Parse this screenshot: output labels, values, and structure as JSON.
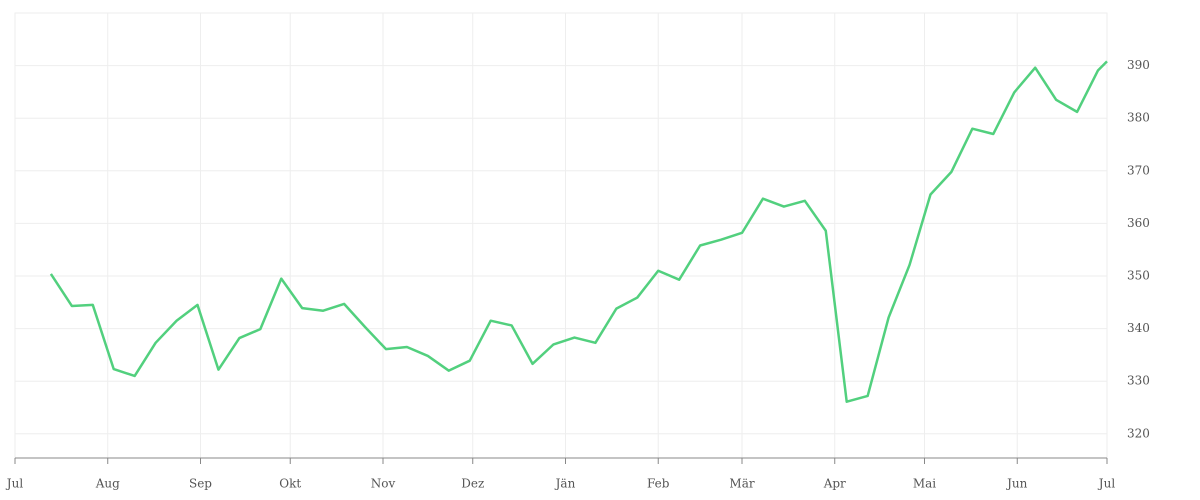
{
  "chart_data": {
    "type": "line",
    "x": [
      12,
      19,
      26,
      33,
      40,
      47,
      54,
      61,
      68,
      75,
      82,
      89,
      96,
      103,
      110,
      117,
      124,
      131,
      138,
      145,
      152,
      159,
      166,
      173,
      180,
      187,
      194,
      201,
      208,
      215,
      222,
      229,
      236,
      243,
      250,
      257,
      264,
      271,
      278,
      285,
      292,
      299,
      306,
      313,
      320,
      327,
      334,
      341,
      348,
      355,
      362,
      365
    ],
    "series": [
      {
        "color": "#52d07e",
        "values": [
          350.4,
          344.3,
          344.5,
          332.3,
          331.0,
          337.3,
          341.5,
          344.5,
          332.2,
          338.2,
          339.9,
          349.5,
          343.9,
          343.4,
          344.7,
          340.3,
          336.1,
          336.5,
          334.8,
          332.0,
          333.9,
          341.5,
          340.6,
          333.3,
          337.0,
          338.3,
          337.3,
          343.8,
          345.9,
          351.0,
          349.3,
          355.8,
          356.9,
          358.2,
          364.7,
          363.2,
          364.3,
          358.6,
          326.1,
          327.2,
          342.1,
          352.1,
          365.5,
          369.8,
          378.0,
          377.0,
          384.9,
          389.6,
          383.5,
          381.2,
          389.1,
          390.8
        ]
      }
    ],
    "xlim": [
      0,
      365
    ],
    "xticks": [
      {
        "value": 0,
        "label": "Jul"
      },
      {
        "value": 31,
        "label": "Aug"
      },
      {
        "value": 62,
        "label": "Sep"
      },
      {
        "value": 92,
        "label": "Okt"
      },
      {
        "value": 123,
        "label": "Nov"
      },
      {
        "value": 153,
        "label": "Dez"
      },
      {
        "value": 184,
        "label": "Jän"
      },
      {
        "value": 215,
        "label": "Feb"
      },
      {
        "value": 243,
        "label": "Mär"
      },
      {
        "value": 274,
        "label": "Apr"
      },
      {
        "value": 304,
        "label": "Mai"
      },
      {
        "value": 335,
        "label": "Jun"
      },
      {
        "value": 365,
        "label": "Jul"
      }
    ],
    "ylim": [
      315.4,
      400
    ],
    "yticks": [
      320,
      330,
      340,
      350,
      360,
      370,
      380,
      390
    ],
    "grid": true
  }
}
